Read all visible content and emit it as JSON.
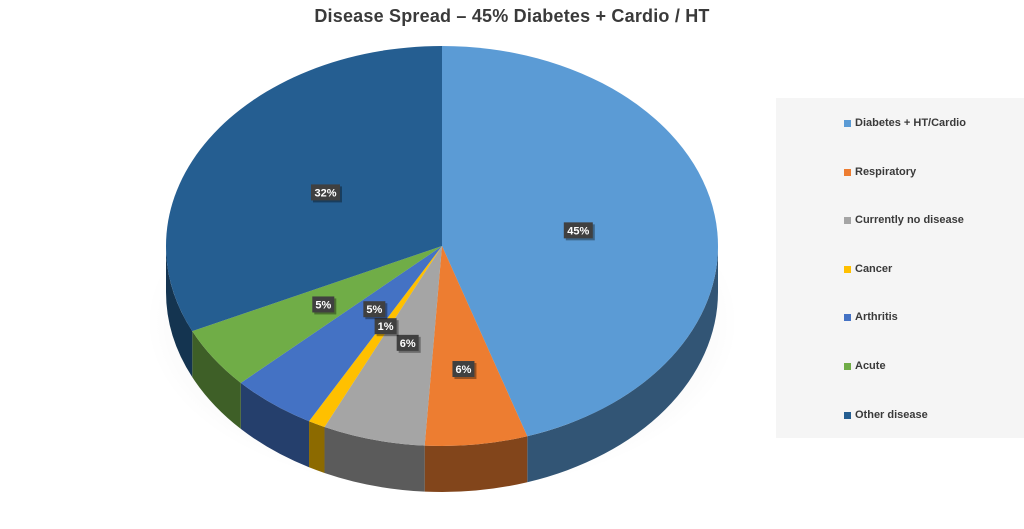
{
  "chart_data": {
    "type": "pie",
    "title": "Disease Spread – 45% Diabetes + Cardio / HT",
    "legend_position": "right",
    "slices": [
      {
        "label": "Diabetes + HT/Cardio",
        "value": 45,
        "data_label": "45%",
        "color": "#5b9bd5"
      },
      {
        "label": "Respiratory",
        "value": 6,
        "data_label": "6%",
        "color": "#ed7d31"
      },
      {
        "label": "Currently no disease",
        "value": 6,
        "data_label": "6%",
        "color": "#a5a5a5"
      },
      {
        "label": "Cancer",
        "value": 1,
        "data_label": "1%",
        "color": "#ffc000"
      },
      {
        "label": "Arthritis",
        "value": 5,
        "data_label": "5%",
        "color": "#4472c4"
      },
      {
        "label": "Acute",
        "value": 5,
        "data_label": "5%",
        "color": "#70ad47"
      },
      {
        "label": "Other disease",
        "value": 32,
        "data_label": "32%",
        "color": "#255e91"
      }
    ]
  }
}
